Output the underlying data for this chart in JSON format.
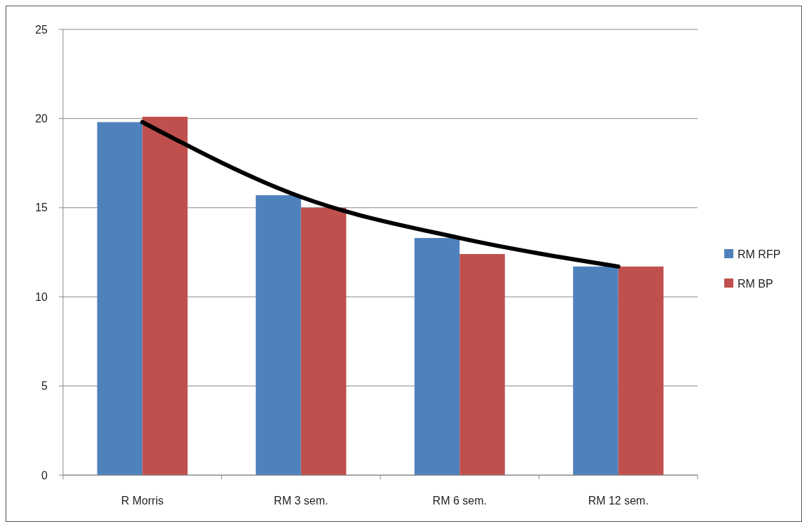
{
  "chart_data": {
    "type": "bar",
    "categories": [
      "R Morris",
      "RM 3 sem.",
      "RM 6 sem.",
      "RM 12 sem."
    ],
    "series": [
      {
        "name": "RM RFP",
        "color": "#4f81bd",
        "values": [
          19.8,
          15.7,
          13.3,
          11.7
        ]
      },
      {
        "name": "RM BP",
        "color": "#c0504d",
        "values": [
          20.1,
          15.0,
          12.4,
          11.7
        ]
      },
      {
        "type": "line",
        "color": "#000000",
        "values": [
          19.8,
          15.6,
          13.3,
          11.7
        ]
      }
    ],
    "ylim": [
      0,
      25
    ],
    "yticks": [
      0,
      5,
      10,
      15,
      20,
      25
    ],
    "grid": "y",
    "legend": "right"
  }
}
